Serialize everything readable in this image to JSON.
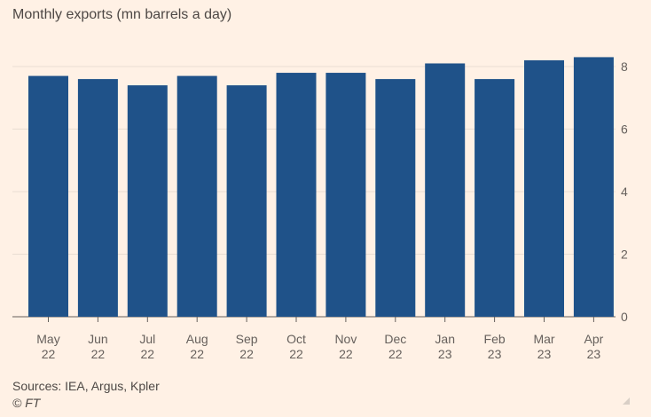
{
  "chart_data": {
    "type": "bar",
    "title": "Monthly exports (mn barrels a day)",
    "categories": [
      [
        "May",
        "22"
      ],
      [
        "Jun",
        "22"
      ],
      [
        "Jul",
        "22"
      ],
      [
        "Aug",
        "22"
      ],
      [
        "Sep",
        "22"
      ],
      [
        "Oct",
        "22"
      ],
      [
        "Nov",
        "22"
      ],
      [
        "Dec",
        "22"
      ],
      [
        "Jan",
        "23"
      ],
      [
        "Feb",
        "23"
      ],
      [
        "Mar",
        "23"
      ],
      [
        "Apr",
        "23"
      ]
    ],
    "values": [
      7.7,
      7.6,
      7.4,
      7.7,
      7.4,
      7.8,
      7.8,
      7.6,
      8.1,
      7.6,
      8.2,
      8.3
    ],
    "xlabel": "",
    "ylabel": "",
    "ylim": [
      0,
      8
    ],
    "yticks": [
      0,
      2,
      4,
      6,
      8
    ],
    "grid": true,
    "bar_color": "#1f5289"
  },
  "footer": {
    "sources": "Sources: IEA, Argus, Kpler",
    "copyright": "© FT"
  }
}
